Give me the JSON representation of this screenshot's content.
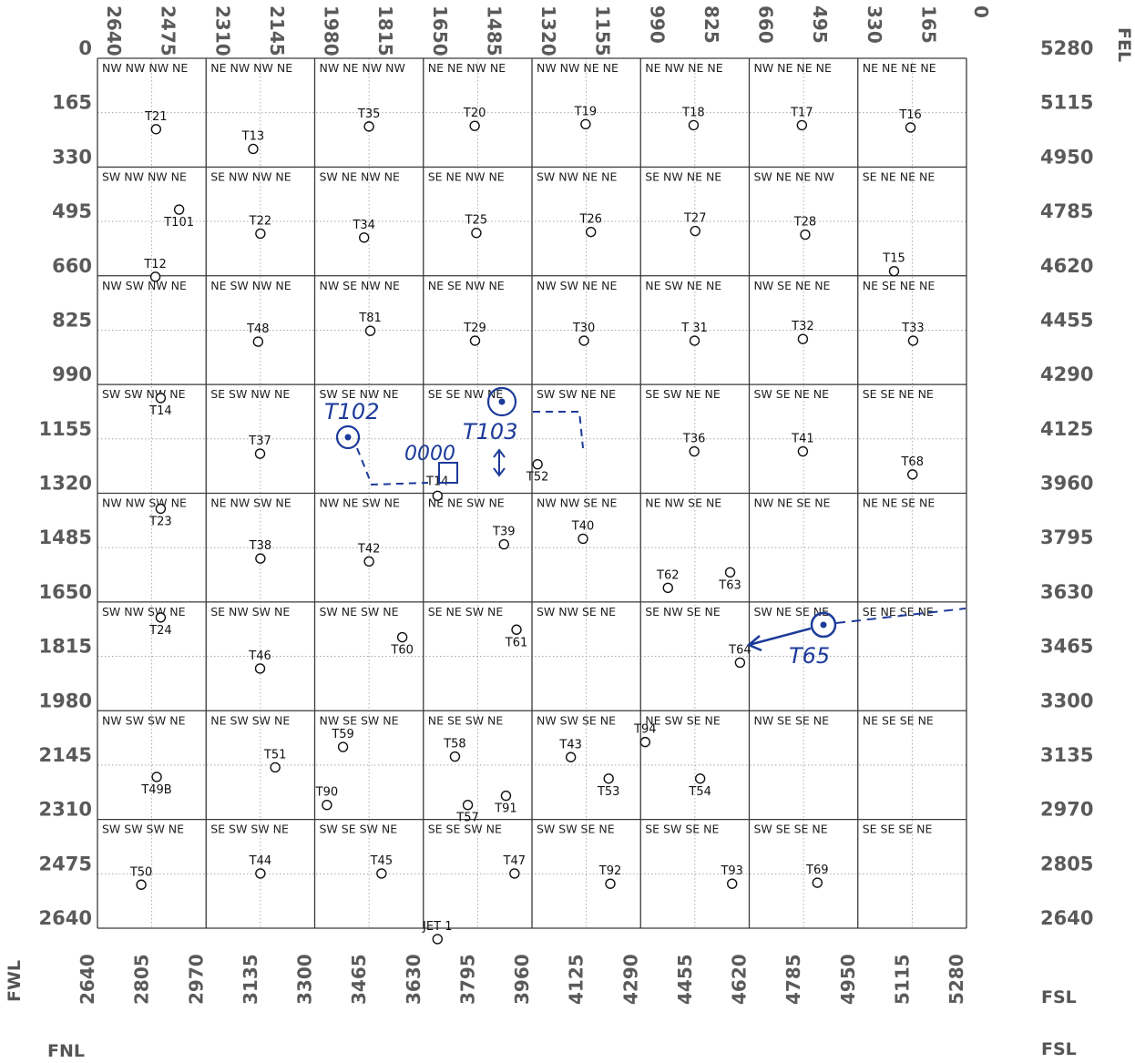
{
  "edge_labels": {
    "fel": "FEL",
    "fwl": "FWL",
    "fnl": "FNL",
    "fsl_1": "FSL",
    "fsl_2": "FSL"
  },
  "top_ticks": [
    "2640",
    "2475",
    "2310",
    "2145",
    "1980",
    "1815",
    "1650",
    "1485",
    "1320",
    "1155",
    "990",
    "825",
    "660",
    "495",
    "330",
    "165",
    "0"
  ],
  "left_ticks": [
    "0",
    "165",
    "330",
    "495",
    "660",
    "825",
    "990",
    "1155",
    "1320",
    "1485",
    "1650",
    "1815",
    "1980",
    "2145",
    "2310",
    "2475",
    "2640"
  ],
  "right_ticks": [
    "5280",
    "5115",
    "4950",
    "4785",
    "4620",
    "4455",
    "4290",
    "4125",
    "3960",
    "3795",
    "3630",
    "3465",
    "3300",
    "3135",
    "2970",
    "2805",
    "2640"
  ],
  "bottom_ticks": [
    "2640",
    "2805",
    "2970",
    "3135",
    "3300",
    "3465",
    "3630",
    "3795",
    "3960",
    "4125",
    "4290",
    "4455",
    "4620",
    "4785",
    "4950",
    "5115",
    "5280"
  ],
  "quarter_labels": [
    [
      "NW NW NW NE",
      "NE NW NW NE",
      "NW NE NW NW",
      "NE NE NW NE",
      "NW NW NE NE",
      "NE NW NE NE",
      "NW NE NE NE",
      "NE NE NE NE"
    ],
    [
      "SW NW NW NE",
      "SE NW NW NE",
      "SW NE NW NE",
      "SE NE NW NE",
      "SW NW NE NE",
      "SE NW NE NE",
      "SW NE NE NW",
      "SE NE NE NE"
    ],
    [
      "NW SW NW NE",
      "NE SW NW NE",
      "NW SE NW NE",
      "NE SE NW NE",
      "NW SW NE NE",
      "NE SW NE NE",
      "NW SE NE NE",
      "NE SE NE NE"
    ],
    [
      "SW SW NW NE",
      "SE SW NW NE",
      "SW SE NW NE",
      "SE SE NW NE",
      "SW SW NE NE",
      "SE SW NE NE",
      "SW SE NE NE",
      "SE SE NE NE"
    ],
    [
      "NW NW SW NE",
      "NE NW SW NE",
      "NW NE SW NE",
      "NE NE SW NE",
      "NW NW SE NE",
      "NE NW SE NE",
      "NW NE SE NE",
      "NE NE SE NE"
    ],
    [
      "SW NW SW NE",
      "SE NW SW NE",
      "SW NE SW NE",
      "SE NE SW NE",
      "SW NW SE NE",
      "SE NW SE NE",
      "SW NE SE NE",
      "SE NE SE NE"
    ],
    [
      "NW SW SW NE",
      "NE SW SW NE",
      "NW SE SW NE",
      "NE SE SW NE",
      "NW SW SE NE",
      "NE SW SE NE",
      "NW SE SE NE",
      "NE SE SE NE"
    ],
    [
      "SW SW SW NE",
      "SE SW SW NE",
      "SW SE SW NE",
      "SE SE SW NE",
      "SW SW SE NE",
      "SE SW SE NE",
      "SW SE SE NE",
      "SE SE SE NE"
    ]
  ],
  "wells": [
    {
      "id": "T21",
      "ew": 2462,
      "ns": 215,
      "lp": "above"
    },
    {
      "id": "T13",
      "ew": 2167,
      "ns": 275,
      "lp": "above"
    },
    {
      "id": "T35",
      "ew": 1815,
      "ns": 207,
      "lp": "above"
    },
    {
      "id": "T20",
      "ew": 1494,
      "ns": 205,
      "lp": "above"
    },
    {
      "id": "T19",
      "ew": 1157,
      "ns": 200,
      "lp": "above"
    },
    {
      "id": "T18",
      "ew": 829,
      "ns": 203,
      "lp": "above"
    },
    {
      "id": "T17",
      "ew": 500,
      "ns": 203,
      "lp": "above"
    },
    {
      "id": "T16",
      "ew": 170,
      "ns": 210,
      "lp": "above"
    },
    {
      "id": "T101",
      "ew": 2392,
      "ns": 459,
      "lp": "below"
    },
    {
      "id": "T22",
      "ew": 2145,
      "ns": 532,
      "lp": "above"
    },
    {
      "id": "T34",
      "ew": 1830,
      "ns": 544,
      "lp": "above"
    },
    {
      "id": "T25",
      "ew": 1489,
      "ns": 530,
      "lp": "above"
    },
    {
      "id": "T26",
      "ew": 1141,
      "ns": 527,
      "lp": "above"
    },
    {
      "id": "T27",
      "ew": 824,
      "ns": 524,
      "lp": "above"
    },
    {
      "id": "T28",
      "ew": 490,
      "ns": 535,
      "lp": "above"
    },
    {
      "id": "T12",
      "ew": 2464,
      "ns": 663,
      "lp": "above"
    },
    {
      "id": "T15",
      "ew": 220,
      "ns": 646,
      "lp": "above"
    },
    {
      "id": "T48",
      "ew": 2152,
      "ns": 860,
      "lp": "above"
    },
    {
      "id": "T81",
      "ew": 1811,
      "ns": 827,
      "lp": "above"
    },
    {
      "id": "T29",
      "ew": 1493,
      "ns": 857,
      "lp": "above"
    },
    {
      "id": "T30",
      "ew": 1162,
      "ns": 857,
      "lp": "above"
    },
    {
      "id": "T 31",
      "ew": 826,
      "ns": 857,
      "lp": "above"
    },
    {
      "id": "T32",
      "ew": 497,
      "ns": 852,
      "lp": "above"
    },
    {
      "id": "T33",
      "ew": 162,
      "ns": 857,
      "lp": "above"
    },
    {
      "id": "T14",
      "ew": 2448,
      "ns": 1031,
      "lp": "below"
    },
    {
      "id": "T37",
      "ew": 2146,
      "ns": 1200,
      "lp": "above"
    },
    {
      "id": "T36",
      "ew": 827,
      "ns": 1193,
      "lp": "above"
    },
    {
      "id": "T41",
      "ew": 497,
      "ns": 1193,
      "lp": "above"
    },
    {
      "id": "T68",
      "ew": 164,
      "ns": 1263,
      "lp": "above"
    },
    {
      "id": "T52",
      "ew": 1303,
      "ns": 1232,
      "lp": "below"
    },
    {
      "id": "T23",
      "ew": 2448,
      "ns": 1367,
      "lp": "below"
    },
    {
      "id": "T38",
      "ew": 2145,
      "ns": 1518,
      "lp": "above"
    },
    {
      "id": "T42",
      "ew": 1815,
      "ns": 1527,
      "lp": "above"
    },
    {
      "id": "T39",
      "ew": 1405,
      "ns": 1475,
      "lp": "above"
    },
    {
      "id": "T40",
      "ew": 1165,
      "ns": 1458,
      "lp": "above"
    },
    {
      "id": "T62",
      "ew": 907,
      "ns": 1607,
      "lp": "above"
    },
    {
      "id": "T63",
      "ew": 718,
      "ns": 1560,
      "lp": "below"
    },
    {
      "id": "T24",
      "ew": 2448,
      "ns": 1697,
      "lp": "below"
    },
    {
      "id": "T46",
      "ew": 2146,
      "ns": 1852,
      "lp": "above"
    },
    {
      "id": "T60",
      "ew": 1714,
      "ns": 1757,
      "lp": "below"
    },
    {
      "id": "T61",
      "ew": 1367,
      "ns": 1734,
      "lp": "below"
    },
    {
      "id": "T64",
      "ew": 688,
      "ns": 1834,
      "lp": "above"
    },
    {
      "id": "T59",
      "ew": 1894,
      "ns": 2090,
      "lp": "above"
    },
    {
      "id": "T58",
      "ew": 1554,
      "ns": 2119,
      "lp": "above"
    },
    {
      "id": "T43",
      "ew": 1202,
      "ns": 2121,
      "lp": "above"
    },
    {
      "id": "T94",
      "ew": 976,
      "ns": 2075,
      "lp": "above"
    },
    {
      "id": "T51",
      "ew": 2100,
      "ns": 2152,
      "lp": "above"
    },
    {
      "id": "T49B",
      "ew": 2460,
      "ns": 2181,
      "lp": "below"
    },
    {
      "id": "T90",
      "ew": 1943,
      "ns": 2266,
      "lp": "above"
    },
    {
      "id": "T57",
      "ew": 1515,
      "ns": 2266,
      "lp": "below"
    },
    {
      "id": "T91",
      "ew": 1399,
      "ns": 2238,
      "lp": "below"
    },
    {
      "id": "T53",
      "ew": 1087,
      "ns": 2186,
      "lp": "below"
    },
    {
      "id": "T54",
      "ew": 809,
      "ns": 2186,
      "lp": "below"
    },
    {
      "id": "T50",
      "ew": 2507,
      "ns": 2508,
      "lp": "above"
    },
    {
      "id": "T44",
      "ew": 2145,
      "ns": 2474,
      "lp": "above"
    },
    {
      "id": "T45",
      "ew": 1777,
      "ns": 2474,
      "lp": "above"
    },
    {
      "id": "T47",
      "ew": 1373,
      "ns": 2474,
      "lp": "above"
    },
    {
      "id": "T92",
      "ew": 1082,
      "ns": 2505,
      "lp": "above"
    },
    {
      "id": "T93",
      "ew": 712,
      "ns": 2505,
      "lp": "above"
    },
    {
      "id": "T69",
      "ew": 453,
      "ns": 2502,
      "lp": "above"
    },
    {
      "id": "JET 1",
      "ew": 1607,
      "ns": 2673,
      "lp": "above"
    }
  ],
  "marked_wells": [
    {
      "id": "T14",
      "ew": 1607,
      "ns": 1300,
      "label": "T14"
    }
  ],
  "handwritten": {
    "t102": "T102",
    "t103": "T103",
    "t65": "T65",
    "zeros": "0000"
  },
  "colors": {
    "grid": "#3a3a3a",
    "subgrid": "#9a9a9a",
    "tick_text": "#5a5a5a",
    "ink": "#1c3a9a"
  }
}
